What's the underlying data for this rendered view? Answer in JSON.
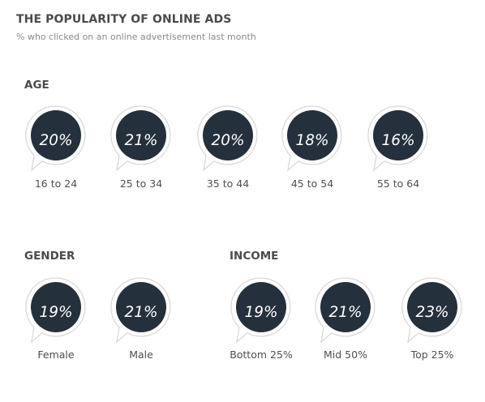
{
  "title": "THE POPULARITY OF ONLINE ADS",
  "subtitle": "% who clicked on an online advertisement last month",
  "colors": {
    "bubble_fill": "#24303c",
    "bubble_outline": "#d9d9d9",
    "text": "#4a4a4a",
    "subtitle": "#8a8a8a"
  },
  "chart_data": [
    {
      "type": "table",
      "title": "AGE",
      "categories": [
        "16 to 24",
        "25 to 34",
        "35 to 44",
        "45 to 54",
        "55 to 64"
      ],
      "values": [
        20,
        21,
        20,
        18,
        16
      ],
      "value_labels": [
        "20%",
        "21%",
        "20%",
        "18%",
        "16%"
      ],
      "unit": "%"
    },
    {
      "type": "table",
      "title": "GENDER",
      "categories": [
        "Female",
        "Male"
      ],
      "values": [
        19,
        21
      ],
      "value_labels": [
        "19%",
        "21%"
      ],
      "unit": "%"
    },
    {
      "type": "table",
      "title": "INCOME",
      "categories": [
        "Bottom 25%",
        "Mid 50%",
        "Top 25%"
      ],
      "values": [
        19,
        21,
        23
      ],
      "value_labels": [
        "19%",
        "21%",
        "23%"
      ],
      "unit": "%"
    }
  ]
}
